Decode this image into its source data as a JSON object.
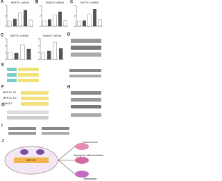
{
  "figure": {
    "panels": [
      {
        "letter": "A",
        "title": "MEF2C mRNA",
        "values": [
          1,
          1.4,
          2.6,
          3.1,
          1.2
        ],
        "ylim": [
          0,
          4
        ],
        "yticks": [
          0,
          2,
          4
        ]
      },
      {
        "letter": "B",
        "title": "SMAD7 mRNA",
        "values": [
          1,
          1.3,
          2.2,
          2.8,
          1.1
        ],
        "ylim": [
          0,
          4
        ],
        "yticks": [
          0,
          2,
          4
        ]
      },
      {
        "letter": "C",
        "title": "MEF2C mRNA",
        "values": [
          1,
          1.1,
          2.4,
          3.3,
          1.3
        ],
        "ylim": [
          0,
          4
        ],
        "yticks": [
          0,
          2,
          4
        ]
      },
      {
        "letter": "C",
        "title": "MEF2C mRNA",
        "values": [
          1,
          0.9,
          2.1,
          1.5
        ],
        "ylim": [
          0,
          3
        ],
        "yticks": [
          0,
          1,
          2,
          3
        ]
      },
      {
        "letter": "",
        "title": "SMAD7 mRNA",
        "values": [
          1,
          1.2,
          2.5,
          1.6
        ],
        "ylim": [
          0,
          3
        ],
        "yticks": [
          0,
          1,
          2,
          3
        ]
      }
    ],
    "blots": {
      "D": "D",
      "E": "E",
      "F": "F",
      "G": "G",
      "H": "H",
      "I": "I"
    },
    "diagram": {
      "letter": "J",
      "center": "MEF2C",
      "outcomes": [
        "Senescence",
        "Myogenic differentiation",
        "Metastasis"
      ],
      "rows": [
        "MEF2C-P1",
        "MEF2C-P2",
        "SMAD7"
      ]
    }
  }
}
